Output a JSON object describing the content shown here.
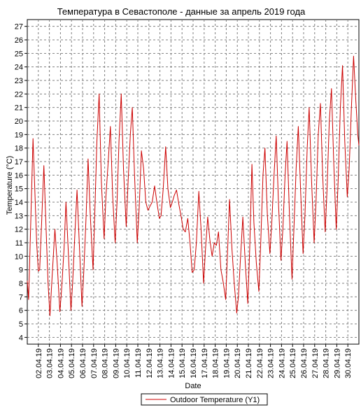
{
  "chart_data": {
    "type": "line",
    "title": "Температура в Севастополе - данные за апрель 2019 года",
    "xlabel": "Date",
    "ylabel": "Temperature (°C)",
    "ylim": [
      3.5,
      27.5
    ],
    "yticks": [
      4,
      5,
      6,
      7,
      8,
      9,
      10,
      11,
      12,
      13,
      14,
      15,
      16,
      17,
      18,
      19,
      20,
      21,
      22,
      23,
      24,
      25,
      26,
      27
    ],
    "x_tick_labels": [
      "02.04.19",
      "03.04.19",
      "04.04.19",
      "05.04.19",
      "06.04.19",
      "07.04.19",
      "08.04.19",
      "09.04.19",
      "10.04.19",
      "11.04.19",
      "12.04.19",
      "13.04.19",
      "14.04.19",
      "15.04.19",
      "16.04.19",
      "17.04.19",
      "18.04.19",
      "19.04.19",
      "20.04.19",
      "21.04.19",
      "22.04.19",
      "23.04.19",
      "24.04.19",
      "25.04.19",
      "26.04.19",
      "27.04.19",
      "28.04.19",
      "29.04.19",
      "30.04.19"
    ],
    "x_range_days": [
      1,
      31
    ],
    "grid": true,
    "legend_position": "bottom-center",
    "series": [
      {
        "name": "Outdoor Temperature (Y1)",
        "color": "#cc0000",
        "points": [
          [
            1.0,
            8.2
          ],
          [
            1.12,
            6.8
          ],
          [
            1.3,
            12.0
          ],
          [
            1.52,
            18.7
          ],
          [
            1.68,
            15.0
          ],
          [
            1.85,
            11.0
          ],
          [
            2.0,
            8.9
          ],
          [
            2.12,
            9.0
          ],
          [
            2.3,
            12.5
          ],
          [
            2.5,
            16.7
          ],
          [
            2.7,
            12.0
          ],
          [
            2.88,
            8.0
          ],
          [
            3.05,
            5.6
          ],
          [
            3.25,
            8.5
          ],
          [
            3.5,
            12.0
          ],
          [
            3.7,
            9.5
          ],
          [
            3.95,
            5.9
          ],
          [
            4.1,
            7.5
          ],
          [
            4.32,
            10.5
          ],
          [
            4.5,
            14.0
          ],
          [
            4.7,
            10.5
          ],
          [
            4.95,
            6.0
          ],
          [
            5.1,
            8.0
          ],
          [
            5.3,
            11.5
          ],
          [
            5.5,
            14.9
          ],
          [
            5.7,
            11.0
          ],
          [
            5.95,
            6.3
          ],
          [
            6.12,
            9.0
          ],
          [
            6.32,
            13.0
          ],
          [
            6.5,
            17.2
          ],
          [
            6.7,
            13.0
          ],
          [
            6.95,
            9.0
          ],
          [
            7.1,
            13.0
          ],
          [
            7.3,
            18.5
          ],
          [
            7.5,
            22.0
          ],
          [
            7.7,
            15.5
          ],
          [
            7.95,
            11.3
          ],
          [
            8.12,
            14.5
          ],
          [
            8.32,
            17.0
          ],
          [
            8.52,
            19.6
          ],
          [
            8.72,
            14.5
          ],
          [
            8.95,
            11.0
          ],
          [
            9.12,
            14.0
          ],
          [
            9.3,
            18.5
          ],
          [
            9.5,
            22.0
          ],
          [
            9.7,
            16.5
          ],
          [
            9.95,
            12.2
          ],
          [
            10.12,
            15.5
          ],
          [
            10.32,
            19.0
          ],
          [
            10.5,
            21.0
          ],
          [
            10.7,
            16.0
          ],
          [
            10.95,
            11.0
          ],
          [
            11.12,
            13.5
          ],
          [
            11.32,
            17.8
          ],
          [
            11.52,
            16.5
          ],
          [
            11.72,
            14.0
          ],
          [
            11.92,
            13.4
          ],
          [
            12.1,
            13.7
          ],
          [
            12.3,
            14.0
          ],
          [
            12.52,
            15.2
          ],
          [
            12.72,
            14.0
          ],
          [
            12.95,
            12.8
          ],
          [
            13.1,
            13.0
          ],
          [
            13.3,
            15.0
          ],
          [
            13.52,
            18.1
          ],
          [
            13.72,
            15.0
          ],
          [
            13.95,
            13.6
          ],
          [
            14.12,
            14.0
          ],
          [
            14.3,
            14.5
          ],
          [
            14.5,
            14.9
          ],
          [
            14.72,
            13.8
          ],
          [
            14.95,
            12.8
          ],
          [
            15.1,
            12.0
          ],
          [
            15.3,
            11.8
          ],
          [
            15.52,
            12.8
          ],
          [
            15.72,
            11.0
          ],
          [
            15.92,
            8.8
          ],
          [
            16.1,
            9.0
          ],
          [
            16.3,
            11.0
          ],
          [
            16.52,
            14.8
          ],
          [
            16.72,
            12.0
          ],
          [
            16.95,
            8.0
          ],
          [
            17.12,
            10.5
          ],
          [
            17.32,
            12.9
          ],
          [
            17.52,
            11.2
          ],
          [
            17.72,
            10.0
          ],
          [
            17.92,
            11.0
          ],
          [
            18.1,
            10.8
          ],
          [
            18.3,
            11.8
          ],
          [
            18.52,
            9.0
          ],
          [
            18.72,
            8.1
          ],
          [
            18.95,
            6.8
          ],
          [
            19.1,
            10.0
          ],
          [
            19.3,
            14.2
          ],
          [
            19.52,
            10.5
          ],
          [
            19.72,
            8.0
          ],
          [
            19.95,
            5.8
          ],
          [
            20.1,
            7.0
          ],
          [
            20.3,
            10.0
          ],
          [
            20.5,
            12.9
          ],
          [
            20.72,
            9.5
          ],
          [
            20.95,
            6.5
          ],
          [
            21.12,
            10.5
          ],
          [
            21.32,
            16.8
          ],
          [
            21.5,
            12.5
          ],
          [
            21.72,
            9.5
          ],
          [
            21.95,
            7.4
          ],
          [
            22.12,
            11.0
          ],
          [
            22.32,
            16.0
          ],
          [
            22.5,
            18.0
          ],
          [
            22.72,
            13.0
          ],
          [
            22.95,
            10.2
          ],
          [
            23.12,
            12.5
          ],
          [
            23.32,
            16.0
          ],
          [
            23.52,
            18.9
          ],
          [
            23.72,
            14.0
          ],
          [
            23.95,
            9.7
          ],
          [
            24.12,
            12.0
          ],
          [
            24.32,
            16.0
          ],
          [
            24.5,
            18.5
          ],
          [
            24.72,
            13.0
          ],
          [
            24.95,
            8.3
          ],
          [
            25.12,
            12.0
          ],
          [
            25.32,
            16.5
          ],
          [
            25.52,
            19.6
          ],
          [
            25.72,
            15.0
          ],
          [
            25.95,
            10.2
          ],
          [
            26.12,
            13.0
          ],
          [
            26.32,
            18.0
          ],
          [
            26.5,
            21.0
          ],
          [
            26.72,
            15.5
          ],
          [
            26.95,
            11.0
          ],
          [
            27.12,
            14.0
          ],
          [
            27.32,
            19.0
          ],
          [
            27.52,
            21.3
          ],
          [
            27.72,
            16.0
          ],
          [
            27.95,
            11.8
          ],
          [
            28.12,
            15.0
          ],
          [
            28.32,
            20.0
          ],
          [
            28.52,
            22.4
          ],
          [
            28.72,
            17.0
          ],
          [
            28.95,
            12.0
          ],
          [
            29.12,
            15.5
          ],
          [
            29.32,
            21.0
          ],
          [
            29.52,
            24.1
          ],
          [
            29.72,
            18.5
          ],
          [
            29.95,
            14.4
          ],
          [
            30.12,
            16.5
          ],
          [
            30.32,
            21.0
          ],
          [
            30.52,
            24.8
          ],
          [
            30.72,
            21.5
          ],
          [
            30.9,
            19.0
          ],
          [
            31.0,
            18.2
          ]
        ]
      }
    ]
  }
}
